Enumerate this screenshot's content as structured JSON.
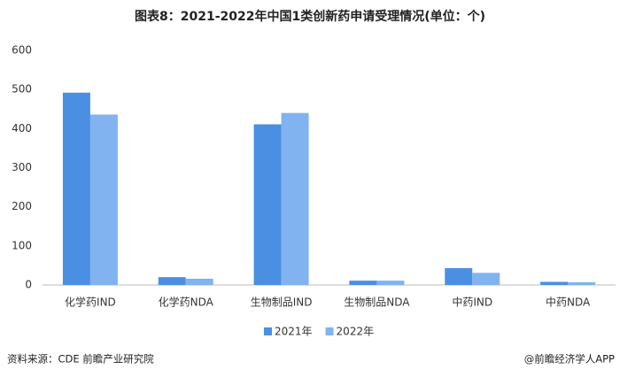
{
  "chart_data": {
    "type": "bar",
    "title": "图表8：2021-2022年中国1类创新药申请受理情况(单位：个)",
    "categories": [
      "化学药IND",
      "化学药NDA",
      "生物制品IND",
      "生物制品NDA",
      "中药IND",
      "中药NDA"
    ],
    "series": [
      {
        "name": "2021年",
        "color": "#4a8fe2",
        "values": [
          492,
          20,
          411,
          11,
          43,
          8
        ]
      },
      {
        "name": "2022年",
        "color": "#80b3f0",
        "values": [
          436,
          16,
          440,
          11,
          31,
          7
        ]
      }
    ],
    "ylim": [
      0,
      600
    ],
    "yticks": [
      0,
      100,
      200,
      300,
      400,
      500,
      600
    ],
    "grid": false,
    "source": "资料来源：CDE 前瞻产业研究院",
    "credit": "@前瞻经济学人APP"
  }
}
